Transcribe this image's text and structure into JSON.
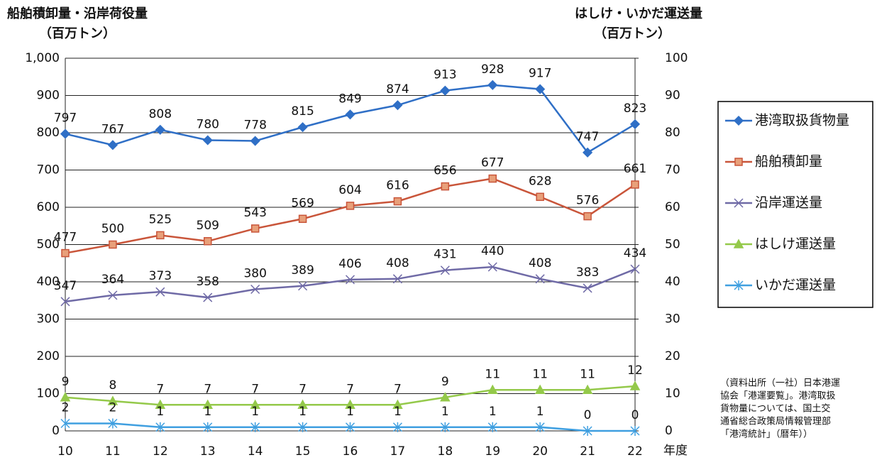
{
  "chart_data": {
    "type": "line",
    "y_title": "船舶積卸量・沿岸荷役量",
    "y_unit": "（百万トン）",
    "y2_title": "はしけ・いかだ運送量",
    "y2_unit": "（百万トン）",
    "x_unit": "年度",
    "categories": [
      "10",
      "11",
      "12",
      "13",
      "14",
      "15",
      "16",
      "17",
      "18",
      "19",
      "20",
      "21",
      "22"
    ],
    "ylim": [
      0,
      1000
    ],
    "yticks": [
      0,
      100,
      200,
      300,
      400,
      500,
      600,
      700,
      800,
      900,
      {
        "value": 1000,
        "label": "1,000"
      }
    ],
    "y2lim": [
      0,
      100
    ],
    "y2ticks": [
      0,
      10,
      20,
      30,
      40,
      50,
      60,
      70,
      80,
      90,
      100
    ],
    "grid": true,
    "legend": "right",
    "series": [
      {
        "name": "港湾取扱貨物量",
        "color": "#2f6fc6",
        "marker": "diamond",
        "values": [
          797,
          767,
          808,
          780,
          778,
          815,
          849,
          874,
          913,
          928,
          917,
          747,
          823
        ]
      },
      {
        "name": "船舶積卸量",
        "color": "#c9553a",
        "marker": "square",
        "values": [
          477,
          500,
          525,
          509,
          543,
          569,
          604,
          616,
          656,
          677,
          628,
          576,
          661
        ]
      },
      {
        "name": "沿岸運送量",
        "color": "#6f6aa6",
        "marker": "x",
        "values": [
          347,
          364,
          373,
          358,
          380,
          389,
          406,
          408,
          431,
          440,
          408,
          383,
          434
        ]
      },
      {
        "name": "はしけ運送量",
        "color": "#94c94a",
        "marker": "triangle",
        "axis": "y2",
        "values": [
          9,
          8,
          7,
          7,
          7,
          7,
          7,
          7,
          9,
          11,
          11,
          11,
          12
        ]
      },
      {
        "name": "いかだ運送量",
        "color": "#3f9fe0",
        "marker": "star",
        "axis": "y2",
        "values": [
          2,
          2,
          1,
          1,
          1,
          1,
          1,
          1,
          1,
          1,
          1,
          0,
          0
        ]
      }
    ],
    "note": [
      "（資料出所（一社）日本港運",
      "協会「港運要覧」。港湾取扱",
      "貨物量については、国土交",
      "通省総合政策局情報管理部",
      "「港湾統計」（暦年））"
    ]
  }
}
